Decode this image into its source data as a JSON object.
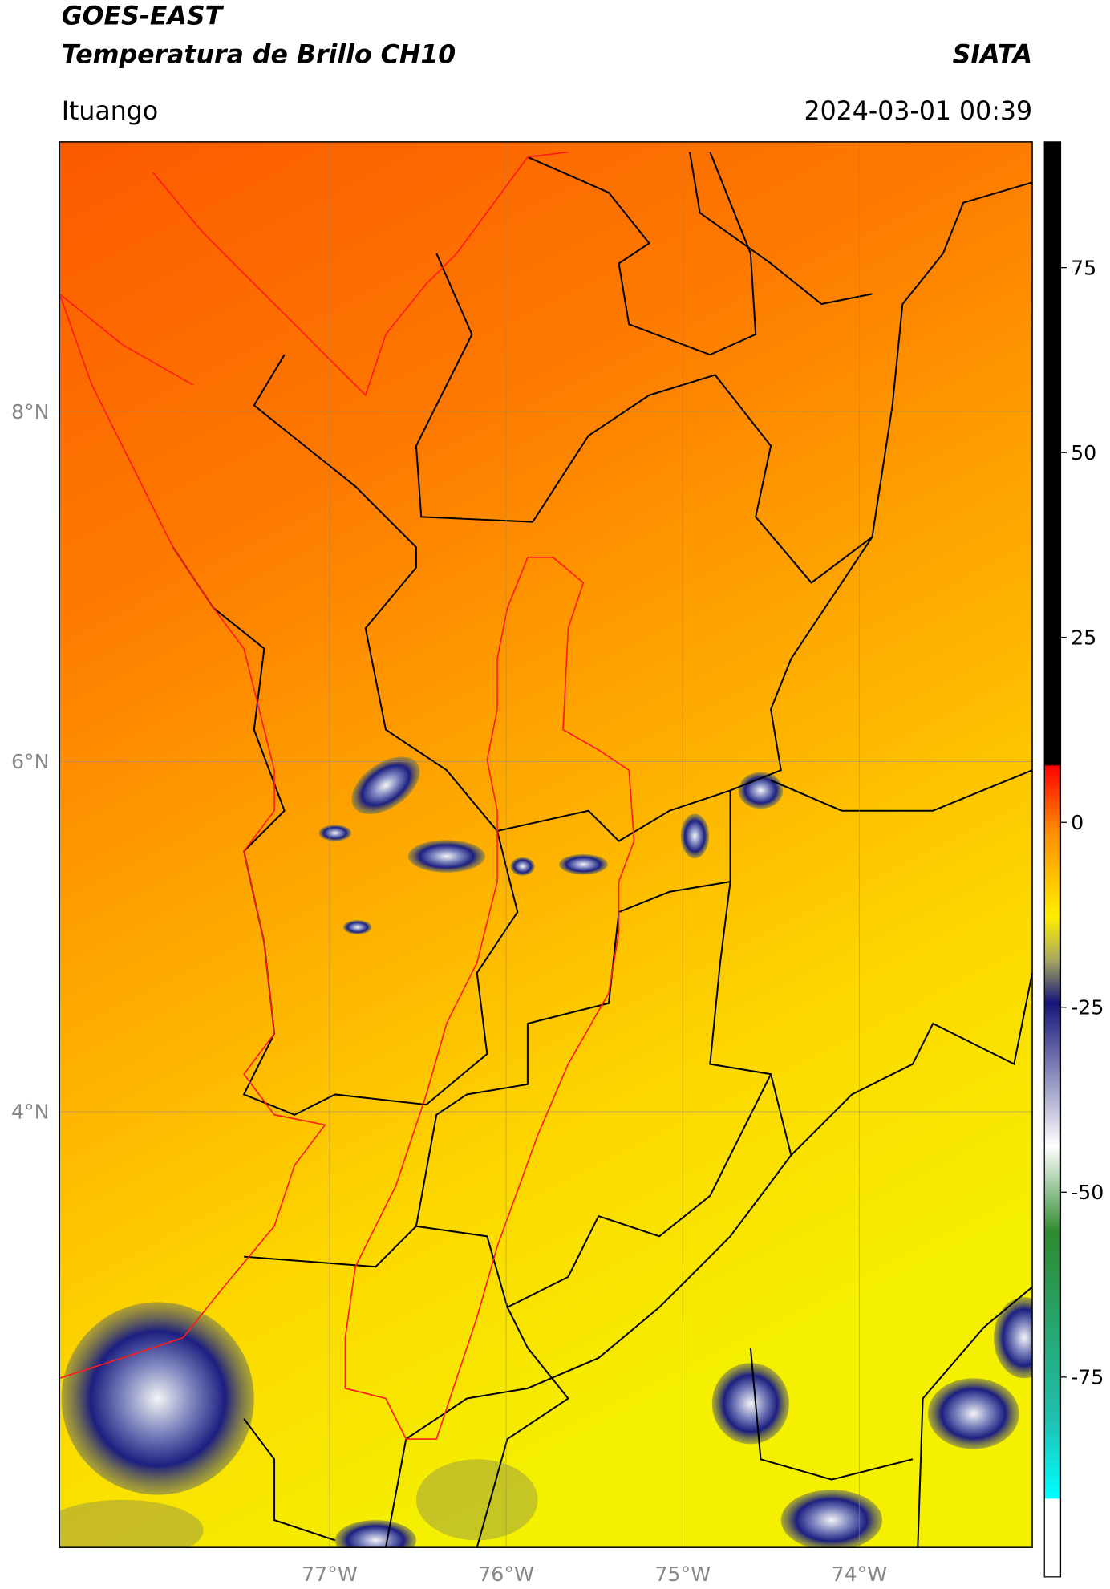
{
  "header": {
    "satellite": "GOES-EAST",
    "product": "Temperatura de Brillo CH10",
    "source": "SIATA",
    "location": "Ituango",
    "datetime": "2024-03-01 00:39"
  },
  "map": {
    "latlim": [
      1.51,
      9.54
    ],
    "lonlim": [
      -78.53,
      -73.02
    ],
    "lat_ticks": [
      {
        "value": 8,
        "label": "8°N"
      },
      {
        "value": 6,
        "label": "6°N"
      },
      {
        "value": 4,
        "label": "4°N"
      }
    ],
    "lon_ticks": [
      {
        "value": -77,
        "label": "77°W"
      },
      {
        "value": -76,
        "label": "76°W"
      },
      {
        "value": -75,
        "label": "75°W"
      },
      {
        "value": -74,
        "label": "74°W"
      }
    ],
    "grid": true
  },
  "colorbar": {
    "lim": [
      -102,
      92
    ],
    "ticks": [
      75,
      50,
      25,
      0,
      -25,
      -50,
      -75
    ]
  }
}
